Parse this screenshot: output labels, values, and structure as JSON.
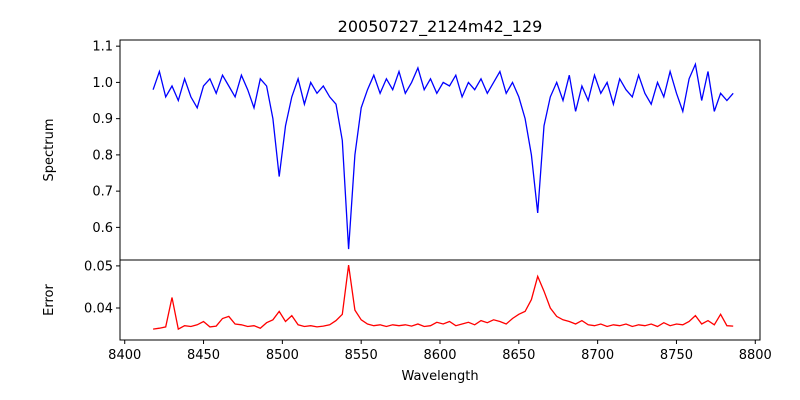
{
  "chart_data": [
    {
      "type": "line",
      "title": "20050727_2124m42_129",
      "xlabel": "",
      "ylabel": "Spectrum",
      "color": "#0000ff",
      "xlim": [
        8397,
        8803
      ],
      "ylim": [
        0.51,
        1.117
      ],
      "yticks": [
        0.6,
        0.7,
        0.8,
        0.9,
        1.0,
        1.1
      ],
      "ytick_labels": [
        "0.6",
        "0.7",
        "0.8",
        "0.9",
        "1.0",
        "1.1"
      ],
      "x_start": 8418,
      "x_step": 4,
      "values": [
        0.98,
        1.03,
        0.96,
        0.99,
        0.95,
        1.01,
        0.96,
        0.93,
        0.99,
        1.01,
        0.97,
        1.02,
        0.99,
        0.96,
        1.02,
        0.98,
        0.93,
        1.01,
        0.99,
        0.9,
        0.74,
        0.88,
        0.96,
        1.01,
        0.94,
        1.0,
        0.97,
        0.99,
        0.96,
        0.94,
        0.84,
        0.54,
        0.8,
        0.93,
        0.98,
        1.02,
        0.97,
        1.01,
        0.98,
        1.03,
        0.97,
        1.0,
        1.04,
        0.98,
        1.01,
        0.97,
        1.0,
        0.99,
        1.02,
        0.96,
        1.0,
        0.98,
        1.01,
        0.97,
        1.0,
        1.03,
        0.97,
        1.0,
        0.96,
        0.9,
        0.8,
        0.64,
        0.88,
        0.96,
        1.0,
        0.95,
        1.02,
        0.92,
        0.99,
        0.95,
        1.02,
        0.97,
        1.0,
        0.94,
        1.01,
        0.98,
        0.96,
        1.02,
        0.97,
        0.94,
        1.0,
        0.96,
        1.03,
        0.97,
        0.92,
        1.01,
        1.05,
        0.95,
        1.03,
        0.92,
        0.97,
        0.95,
        0.97
      ]
    },
    {
      "type": "line",
      "xlabel": "Wavelength",
      "ylabel": "Error",
      "color": "#ff0000",
      "xlim": [
        8397,
        8803
      ],
      "ylim": [
        0.0324,
        0.0514
      ],
      "yticks": [
        0.04,
        0.05
      ],
      "ytick_labels": [
        "0.04",
        "0.05"
      ],
      "xticks": [
        8400,
        8450,
        8500,
        8550,
        8600,
        8650,
        8700,
        8750,
        8800
      ],
      "xtick_labels": [
        "8400",
        "8450",
        "8500",
        "8550",
        "8600",
        "8650",
        "8700",
        "8750",
        "8800"
      ],
      "x_start": 8418,
      "x_step": 4,
      "values": [
        0.035,
        0.0352,
        0.0355,
        0.0425,
        0.035,
        0.0358,
        0.0356,
        0.036,
        0.0368,
        0.0355,
        0.0357,
        0.0375,
        0.038,
        0.0362,
        0.036,
        0.0356,
        0.0358,
        0.0352,
        0.0365,
        0.0372,
        0.0392,
        0.0368,
        0.0382,
        0.036,
        0.0356,
        0.0358,
        0.0355,
        0.0357,
        0.036,
        0.037,
        0.0385,
        0.0502,
        0.0395,
        0.0372,
        0.0362,
        0.0358,
        0.036,
        0.0356,
        0.036,
        0.0358,
        0.036,
        0.0357,
        0.0362,
        0.0356,
        0.0358,
        0.0366,
        0.0362,
        0.0368,
        0.0358,
        0.0362,
        0.0366,
        0.036,
        0.037,
        0.0365,
        0.0372,
        0.0368,
        0.0362,
        0.0375,
        0.0385,
        0.0392,
        0.042,
        0.0475,
        0.044,
        0.04,
        0.038,
        0.0372,
        0.0368,
        0.0362,
        0.037,
        0.036,
        0.0358,
        0.0362,
        0.0356,
        0.036,
        0.0358,
        0.0362,
        0.0356,
        0.036,
        0.0358,
        0.0362,
        0.0356,
        0.0365,
        0.0358,
        0.0362,
        0.036,
        0.0368,
        0.0382,
        0.0362,
        0.037,
        0.036,
        0.0385,
        0.0358,
        0.0357
      ]
    }
  ]
}
